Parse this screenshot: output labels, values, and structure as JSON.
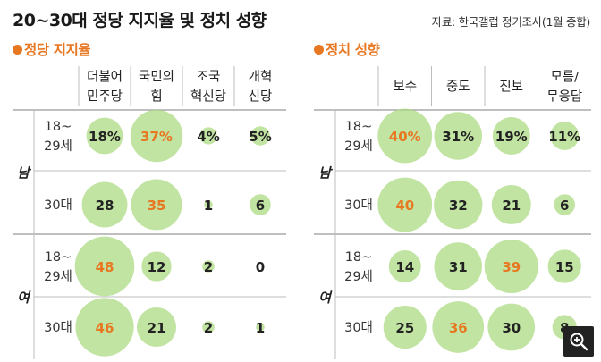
{
  "title": "20~30대 정당 지지율 및 정치 성향",
  "source": "자료: 한국갤럽 정기조사(1월 종합)",
  "colors": {
    "accent": "#e87722",
    "bubble": "#a6d97a",
    "grid": "#bdbdbd"
  },
  "chart_data": [
    {
      "type": "table",
      "title": "정당 지지율",
      "columns": [
        [
          "더불어",
          "민주당"
        ],
        [
          "국민의",
          "힘"
        ],
        [
          "조국",
          "혁신당"
        ],
        [
          "개혁",
          "신당"
        ]
      ],
      "groups": [
        {
          "label": "남",
          "rows": [
            {
              "label": [
                "18~",
                "29세"
              ],
              "values": [
                18,
                37,
                4,
                5
              ],
              "display": [
                "18%",
                "37%",
                "4%",
                "5%"
              ]
            },
            {
              "label": [
                "30대"
              ],
              "values": [
                28,
                35,
                1,
                6
              ],
              "display": [
                "28",
                "35",
                "1",
                "6"
              ]
            }
          ]
        },
        {
          "label": "여",
          "rows": [
            {
              "label": [
                "18~",
                "29세"
              ],
              "values": [
                48,
                12,
                2,
                0
              ],
              "display": [
                "48",
                "12",
                "2",
                "0"
              ]
            },
            {
              "label": [
                "30대"
              ],
              "values": [
                46,
                21,
                2,
                1
              ],
              "display": [
                "46",
                "21",
                "2",
                "1"
              ]
            }
          ]
        }
      ],
      "highlight": [
        [
          false,
          true,
          false,
          false
        ],
        [
          false,
          true,
          false,
          false
        ],
        [
          true,
          false,
          false,
          false
        ],
        [
          true,
          false,
          false,
          false
        ]
      ]
    },
    {
      "type": "table",
      "title": "정치 성향",
      "columns": [
        [
          "보수"
        ],
        [
          "중도"
        ],
        [
          "진보"
        ],
        [
          "모름/",
          "무응답"
        ]
      ],
      "groups": [
        {
          "label": "남",
          "rows": [
            {
              "label": [
                "18~",
                "29세"
              ],
              "values": [
                40,
                31,
                19,
                11
              ],
              "display": [
                "40%",
                "31%",
                "19%",
                "11%"
              ]
            },
            {
              "label": [
                "30대"
              ],
              "values": [
                40,
                32,
                21,
                6
              ],
              "display": [
                "40",
                "32",
                "21",
                "6"
              ]
            }
          ]
        },
        {
          "label": "여",
          "rows": [
            {
              "label": [
                "18~",
                "29세"
              ],
              "values": [
                14,
                31,
                39,
                15
              ],
              "display": [
                "14",
                "31",
                "39",
                "15"
              ]
            },
            {
              "label": [
                "30대"
              ],
              "values": [
                25,
                36,
                30,
                8
              ],
              "display": [
                "25",
                "36",
                "30",
                "8"
              ]
            }
          ]
        }
      ],
      "highlight": [
        [
          true,
          false,
          false,
          false
        ],
        [
          true,
          false,
          false,
          false
        ],
        [
          false,
          false,
          true,
          false
        ],
        [
          false,
          true,
          false,
          false
        ]
      ]
    }
  ]
}
